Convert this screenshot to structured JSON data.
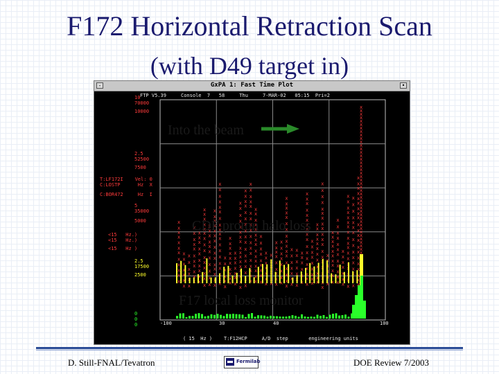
{
  "slide": {
    "title_line1": "F172 Horizontal Retraction Scan",
    "title_line2": "(with D49 target in)",
    "annotation_beam": "Into the beam",
    "annotation_cdf": "CDF proton halo loss",
    "annotation_f17": "F17 local loss monitor",
    "footer_left": "D. Still-FNAL/Tevatron",
    "footer_right": "DOE Review 7/2003",
    "logo_text": "Fermilab"
  },
  "window": {
    "title": "GxPA 1: Fast Time Plot",
    "close_glyph": "-",
    "max_glyph": "•"
  },
  "ftp": {
    "header": "FTP V5.39     Console  7   58     Thu     7-MAR-02   05:15  Pri=2",
    "axis_red_top": "10",
    "axis_red_mid": "70000",
    "axis_red_low": "10000",
    "axis_red2_top": "2.5",
    "axis_red2_mid": "52500",
    "axis_red2_low": "7500",
    "param1": "T:LF172I    Vel: 0",
    "param2": "C:LOSTP      Hz  X",
    "param3": "C:BOR472     Hz  I",
    "axis_yel_top": "5",
    "axis_yel_mid": "35000",
    "axis_yel_low": "5000",
    "rate1": "<15   Hz.)",
    "rate2": "<15   Hz.)",
    "rate3": "<15   Hz )",
    "axis_yel2_top": "2.5",
    "axis_yel2_mid": "17500",
    "axis_yel2_low": "2500",
    "axis_grn_top": "0",
    "axis_grn_mid": "0",
    "axis_grn_low": "0",
    "x_min": "-100",
    "x_t1": "30",
    "x_t2": "40",
    "x_max": "100",
    "bottom": "( 15  Hz )    T:F12HCP     A/D  step       engineering units"
  },
  "chart_data": {
    "type": "scatter",
    "title": "GxPA 1: Fast Time Plot",
    "x_ticks": [
      "-100",
      "30",
      "40",
      "100"
    ],
    "series": [
      {
        "name": "C:LOSTP",
        "color": "#ff3b3b"
      },
      {
        "name": "C:BOR472",
        "color": "#ffff2a"
      },
      {
        "name": "T:LF172I",
        "color": "#2aff2a"
      }
    ],
    "grid": true
  }
}
